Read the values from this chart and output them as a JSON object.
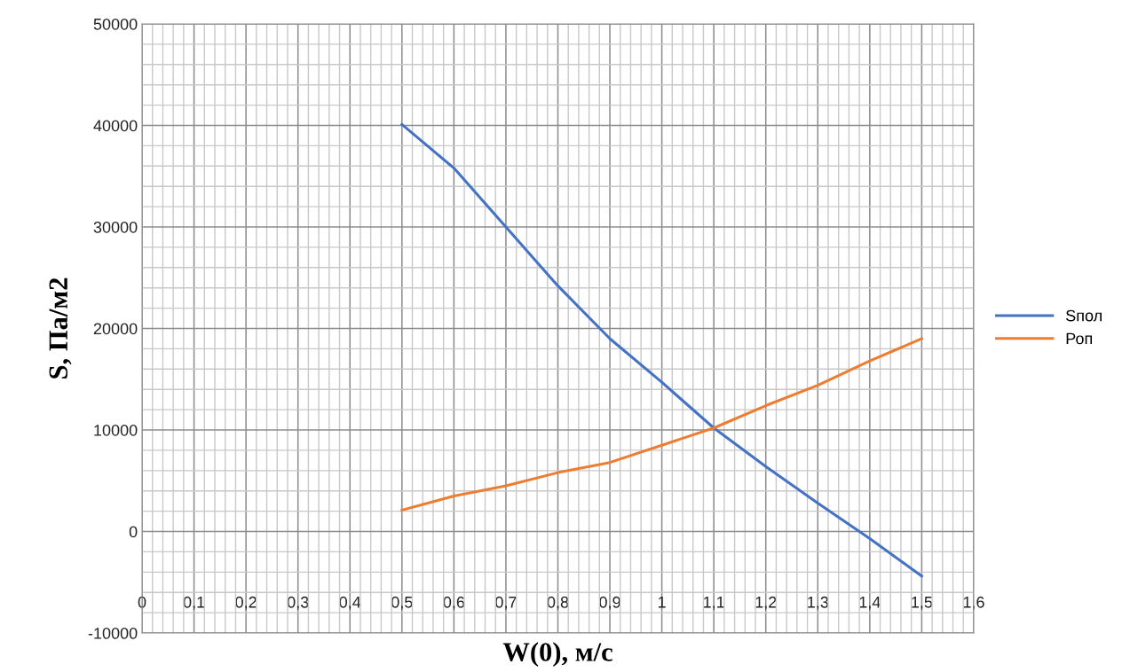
{
  "chart_data": {
    "type": "line",
    "xlabel": "W(0), м/с",
    "ylabel": "S, Па/м2",
    "xlim": [
      0,
      1.6
    ],
    "ylim": [
      -10000,
      50000
    ],
    "xticks": [
      0,
      {
        "value": 0.1,
        "label": "0,1"
      },
      {
        "value": 0.2,
        "label": "0,2"
      },
      {
        "value": 0.3,
        "label": "0,3"
      },
      {
        "value": 0.4,
        "label": "0,4"
      },
      {
        "value": 0.5,
        "label": "0,5"
      },
      {
        "value": 0.6,
        "label": "0,6"
      },
      {
        "value": 0.7,
        "label": "0,7"
      },
      {
        "value": 0.8,
        "label": "0,8"
      },
      {
        "value": 0.9,
        "label": "0,9"
      },
      1,
      {
        "value": 1.1,
        "label": "1,1"
      },
      {
        "value": 1.2,
        "label": "1,2"
      },
      {
        "value": 1.3,
        "label": "1,3"
      },
      {
        "value": 1.4,
        "label": "1,4"
      },
      {
        "value": 1.5,
        "label": "1,5"
      },
      {
        "value": 1.6,
        "label": "1,6"
      }
    ],
    "yticks": [
      -10000,
      0,
      10000,
      20000,
      30000,
      40000,
      50000
    ],
    "x": [
      0.5,
      0.6,
      0.7,
      0.8,
      0.9,
      1.0,
      1.1,
      1.2,
      1.3,
      1.4,
      1.5
    ],
    "series": [
      {
        "name": "Sпол",
        "color": "#4472c4",
        "values": [
          40100,
          35800,
          30000,
          24200,
          19000,
          14700,
          10200,
          6400,
          2800,
          -700,
          -4400
        ]
      },
      {
        "name": "Роп",
        "color": "#ed7d31",
        "values": [
          2100,
          3500,
          4500,
          5800,
          6800,
          8500,
          10200,
          12400,
          14400,
          16800,
          19000
        ]
      }
    ],
    "grid": true,
    "legend": "right",
    "marker": "none",
    "line_style": "solid"
  }
}
